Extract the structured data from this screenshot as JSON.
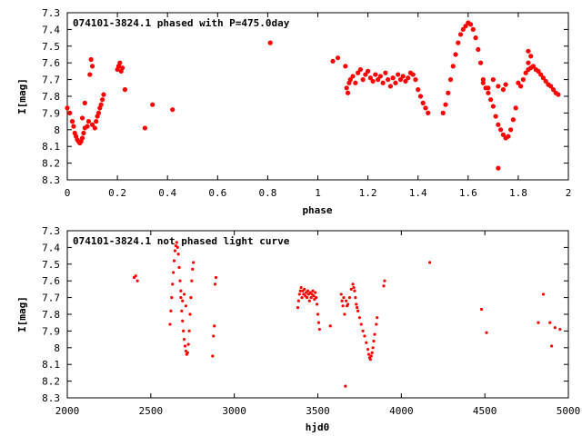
{
  "chart_data": [
    {
      "type": "scatter",
      "title": "074101-3824.1 phased with P=475.0day",
      "xlabel": "phase",
      "ylabel": "I[mag]",
      "xlim": [
        0,
        2
      ],
      "ylim": [
        8.3,
        7.3
      ],
      "y_inverted": true,
      "grid": false,
      "point_color": "#ff0000",
      "xticks": [
        "0",
        "0.2",
        "0.4",
        "0.6",
        "0.8",
        "1",
        "1.2",
        "1.4",
        "1.6",
        "1.8",
        "2"
      ],
      "yticks": [
        "7.3",
        "7.4",
        "7.5",
        "7.6",
        "7.7",
        "7.8",
        "7.9",
        "8",
        "8.1",
        "8.2",
        "8.3"
      ],
      "points": [
        [
          0.0,
          7.87
        ],
        [
          0.01,
          7.9
        ],
        [
          0.02,
          7.95
        ],
        [
          0.025,
          7.98
        ],
        [
          0.03,
          8.02
        ],
        [
          0.035,
          8.04
        ],
        [
          0.04,
          8.06
        ],
        [
          0.045,
          8.07
        ],
        [
          0.05,
          8.08
        ],
        [
          0.055,
          8.07
        ],
        [
          0.06,
          8.05
        ],
        [
          0.065,
          8.02
        ],
        [
          0.07,
          7.99
        ],
        [
          0.06,
          7.93
        ],
        [
          0.07,
          7.84
        ],
        [
          0.08,
          7.98
        ],
        [
          0.085,
          7.95
        ],
        [
          0.09,
          7.67
        ],
        [
          0.095,
          7.58
        ],
        [
          0.1,
          7.62
        ],
        [
          0.1,
          7.97
        ],
        [
          0.11,
          7.99
        ],
        [
          0.115,
          7.95
        ],
        [
          0.12,
          7.92
        ],
        [
          0.125,
          7.9
        ],
        [
          0.13,
          7.87
        ],
        [
          0.135,
          7.85
        ],
        [
          0.14,
          7.82
        ],
        [
          0.145,
          7.79
        ],
        [
          0.2,
          7.64
        ],
        [
          0.205,
          7.62
        ],
        [
          0.21,
          7.6
        ],
        [
          0.215,
          7.65
        ],
        [
          0.22,
          7.63
        ],
        [
          0.23,
          7.76
        ],
        [
          0.31,
          7.99
        ],
        [
          0.34,
          7.85
        ],
        [
          0.42,
          7.88
        ],
        [
          0.81,
          7.48
        ],
        [
          1.06,
          7.59
        ],
        [
          1.08,
          7.57
        ],
        [
          1.11,
          7.62
        ],
        [
          1.115,
          7.75
        ],
        [
          1.12,
          7.78
        ],
        [
          1.125,
          7.72
        ],
        [
          1.13,
          7.7
        ],
        [
          1.14,
          7.68
        ],
        [
          1.15,
          7.72
        ],
        [
          1.16,
          7.66
        ],
        [
          1.17,
          7.64
        ],
        [
          1.18,
          7.7
        ],
        [
          1.19,
          7.67
        ],
        [
          1.2,
          7.65
        ],
        [
          1.21,
          7.69
        ],
        [
          1.22,
          7.71
        ],
        [
          1.23,
          7.67
        ],
        [
          1.24,
          7.7
        ],
        [
          1.25,
          7.68
        ],
        [
          1.26,
          7.72
        ],
        [
          1.27,
          7.66
        ],
        [
          1.28,
          7.7
        ],
        [
          1.29,
          7.74
        ],
        [
          1.3,
          7.69
        ],
        [
          1.31,
          7.72
        ],
        [
          1.32,
          7.67
        ],
        [
          1.33,
          7.7
        ],
        [
          1.34,
          7.68
        ],
        [
          1.35,
          7.71
        ],
        [
          1.36,
          7.69
        ],
        [
          1.37,
          7.66
        ],
        [
          1.38,
          7.67
        ],
        [
          1.39,
          7.7
        ],
        [
          1.4,
          7.76
        ],
        [
          1.41,
          7.8
        ],
        [
          1.42,
          7.84
        ],
        [
          1.43,
          7.87
        ],
        [
          1.44,
          7.9
        ],
        [
          1.5,
          7.9
        ],
        [
          1.51,
          7.85
        ],
        [
          1.52,
          7.78
        ],
        [
          1.53,
          7.7
        ],
        [
          1.54,
          7.62
        ],
        [
          1.55,
          7.55
        ],
        [
          1.56,
          7.48
        ],
        [
          1.57,
          7.43
        ],
        [
          1.58,
          7.4
        ],
        [
          1.59,
          7.38
        ],
        [
          1.6,
          7.36
        ],
        [
          1.61,
          7.37
        ],
        [
          1.62,
          7.4
        ],
        [
          1.63,
          7.45
        ],
        [
          1.64,
          7.52
        ],
        [
          1.65,
          7.6
        ],
        [
          1.66,
          7.7
        ],
        [
          1.67,
          7.75
        ],
        [
          1.68,
          7.78
        ],
        [
          1.69,
          7.82
        ],
        [
          1.7,
          7.86
        ],
        [
          1.71,
          7.92
        ],
        [
          1.72,
          7.97
        ],
        [
          1.72,
          8.23
        ],
        [
          1.73,
          8.0
        ],
        [
          1.74,
          8.03
        ],
        [
          1.75,
          8.05
        ],
        [
          1.76,
          8.04
        ],
        [
          1.77,
          8.0
        ],
        [
          1.78,
          7.94
        ],
        [
          1.79,
          7.87
        ],
        [
          1.66,
          7.72
        ],
        [
          1.68,
          7.75
        ],
        [
          1.7,
          7.7
        ],
        [
          1.72,
          7.74
        ],
        [
          1.74,
          7.76
        ],
        [
          1.75,
          7.73
        ],
        [
          1.8,
          7.72
        ],
        [
          1.81,
          7.74
        ],
        [
          1.82,
          7.7
        ],
        [
          1.83,
          7.66
        ],
        [
          1.84,
          7.64
        ],
        [
          1.85,
          7.63
        ],
        [
          1.86,
          7.62
        ],
        [
          1.87,
          7.64
        ],
        [
          1.88,
          7.65
        ],
        [
          1.89,
          7.67
        ],
        [
          1.9,
          7.69
        ],
        [
          1.91,
          7.71
        ],
        [
          1.92,
          7.73
        ],
        [
          1.93,
          7.74
        ],
        [
          1.94,
          7.76
        ],
        [
          1.95,
          7.78
        ],
        [
          1.96,
          7.79
        ],
        [
          1.84,
          7.6
        ],
        [
          1.85,
          7.56
        ],
        [
          1.84,
          7.53
        ]
      ]
    },
    {
      "type": "scatter",
      "title": "074101-3824.1 not phased light curve",
      "xlabel": "hjd0",
      "ylabel": "I[mag]",
      "xlim": [
        2000,
        5000
      ],
      "ylim": [
        8.3,
        7.3
      ],
      "y_inverted": true,
      "grid": false,
      "point_color": "#ff0000",
      "xticks": [
        "2000",
        "2500",
        "3000",
        "3500",
        "4000",
        "4500",
        "5000"
      ],
      "yticks": [
        "7.3",
        "7.4",
        "7.5",
        "7.6",
        "7.7",
        "7.8",
        "7.9",
        "8",
        "8.1",
        "8.2",
        "8.3"
      ],
      "points": [
        [
          2400,
          7.58
        ],
        [
          2410,
          7.57
        ],
        [
          2420,
          7.6
        ],
        [
          2615,
          7.86
        ],
        [
          2620,
          7.78
        ],
        [
          2625,
          7.7
        ],
        [
          2630,
          7.62
        ],
        [
          2635,
          7.55
        ],
        [
          2640,
          7.48
        ],
        [
          2645,
          7.42
        ],
        [
          2650,
          7.39
        ],
        [
          2655,
          7.37
        ],
        [
          2660,
          7.4
        ],
        [
          2665,
          7.44
        ],
        [
          2670,
          7.52
        ],
        [
          2675,
          7.6
        ],
        [
          2680,
          7.7
        ],
        [
          2685,
          7.78
        ],
        [
          2690,
          7.84
        ],
        [
          2695,
          7.9
        ],
        [
          2700,
          7.95
        ],
        [
          2705,
          7.99
        ],
        [
          2710,
          8.02
        ],
        [
          2715,
          8.04
        ],
        [
          2720,
          8.03
        ],
        [
          2725,
          7.98
        ],
        [
          2730,
          7.9
        ],
        [
          2735,
          7.8
        ],
        [
          2740,
          7.7
        ],
        [
          2745,
          7.6
        ],
        [
          2750,
          7.53
        ],
        [
          2755,
          7.49
        ],
        [
          2680,
          7.66
        ],
        [
          2690,
          7.72
        ],
        [
          2700,
          7.68
        ],
        [
          2710,
          7.75
        ],
        [
          2870,
          8.05
        ],
        [
          2875,
          7.93
        ],
        [
          2880,
          7.87
        ],
        [
          2885,
          7.62
        ],
        [
          2890,
          7.58
        ],
        [
          3380,
          7.76
        ],
        [
          3385,
          7.72
        ],
        [
          3390,
          7.68
        ],
        [
          3395,
          7.66
        ],
        [
          3400,
          7.64
        ],
        [
          3405,
          7.7
        ],
        [
          3410,
          7.66
        ],
        [
          3415,
          7.68
        ],
        [
          3420,
          7.65
        ],
        [
          3425,
          7.69
        ],
        [
          3430,
          7.67
        ],
        [
          3435,
          7.7
        ],
        [
          3440,
          7.66
        ],
        [
          3445,
          7.68
        ],
        [
          3450,
          7.72
        ],
        [
          3455,
          7.67
        ],
        [
          3460,
          7.7
        ],
        [
          3465,
          7.68
        ],
        [
          3470,
          7.66
        ],
        [
          3475,
          7.69
        ],
        [
          3480,
          7.71
        ],
        [
          3485,
          7.67
        ],
        [
          3490,
          7.7
        ],
        [
          3495,
          7.74
        ],
        [
          3500,
          7.8
        ],
        [
          3505,
          7.85
        ],
        [
          3510,
          7.89
        ],
        [
          3575,
          7.87
        ],
        [
          3640,
          7.68
        ],
        [
          3645,
          7.72
        ],
        [
          3650,
          7.75
        ],
        [
          3655,
          7.7
        ],
        [
          3660,
          7.8
        ],
        [
          3665,
          8.23
        ],
        [
          3670,
          7.72
        ],
        [
          3675,
          7.75
        ],
        [
          3680,
          7.74
        ],
        [
          3690,
          7.7
        ],
        [
          3700,
          7.65
        ],
        [
          3710,
          7.62
        ],
        [
          3715,
          7.64
        ],
        [
          3720,
          7.66
        ],
        [
          3725,
          7.7
        ],
        [
          3730,
          7.74
        ],
        [
          3735,
          7.76
        ],
        [
          3740,
          7.78
        ],
        [
          3750,
          7.82
        ],
        [
          3760,
          7.86
        ],
        [
          3770,
          7.9
        ],
        [
          3780,
          7.93
        ],
        [
          3790,
          7.97
        ],
        [
          3800,
          8.01
        ],
        [
          3805,
          8.04
        ],
        [
          3810,
          8.06
        ],
        [
          3815,
          8.07
        ],
        [
          3820,
          8.05
        ],
        [
          3825,
          8.03
        ],
        [
          3830,
          8.0
        ],
        [
          3835,
          7.96
        ],
        [
          3840,
          7.92
        ],
        [
          3850,
          7.86
        ],
        [
          3855,
          7.82
        ],
        [
          3895,
          7.63
        ],
        [
          3900,
          7.6
        ],
        [
          4170,
          7.49
        ],
        [
          4480,
          7.77
        ],
        [
          4510,
          7.91
        ],
        [
          4820,
          7.85
        ],
        [
          4850,
          7.68
        ],
        [
          4890,
          7.85
        ],
        [
          4900,
          7.99
        ],
        [
          4920,
          7.88
        ],
        [
          4950,
          7.89
        ]
      ]
    }
  ]
}
